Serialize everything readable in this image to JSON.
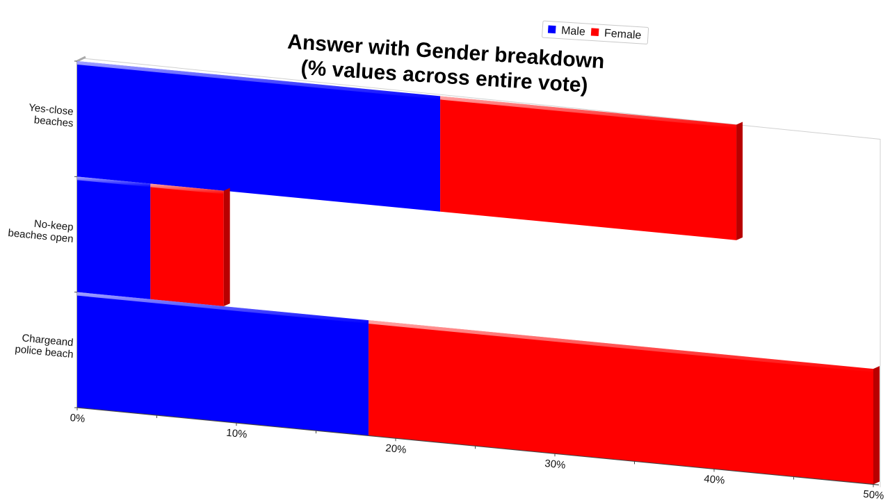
{
  "chart_data": {
    "type": "bar",
    "orientation": "horizontal",
    "stacked": true,
    "title": "Answer with Gender breakdown (% values across entire vote)",
    "title_lines": [
      "Answer with Gender breakdown",
      "(% values across entire vote)"
    ],
    "categories": [
      [
        "Yes-close",
        "beaches"
      ],
      [
        "No-keep",
        "beaches open"
      ],
      [
        "Chargeand",
        "police beach"
      ]
    ],
    "series": [
      {
        "name": "Male",
        "color": "#0000ff",
        "values": [
          22.8,
          4.6,
          18.3
        ]
      },
      {
        "name": "Female",
        "color": "#ff0000",
        "values": [
          18.6,
          4.6,
          31.7
        ]
      }
    ],
    "xlim": [
      0,
      50
    ],
    "xticks": [
      "0%",
      "10%",
      "20%",
      "30%",
      "40%",
      "50%"
    ],
    "legend_position": "top-center",
    "grid": false,
    "perspective_3d": true
  }
}
